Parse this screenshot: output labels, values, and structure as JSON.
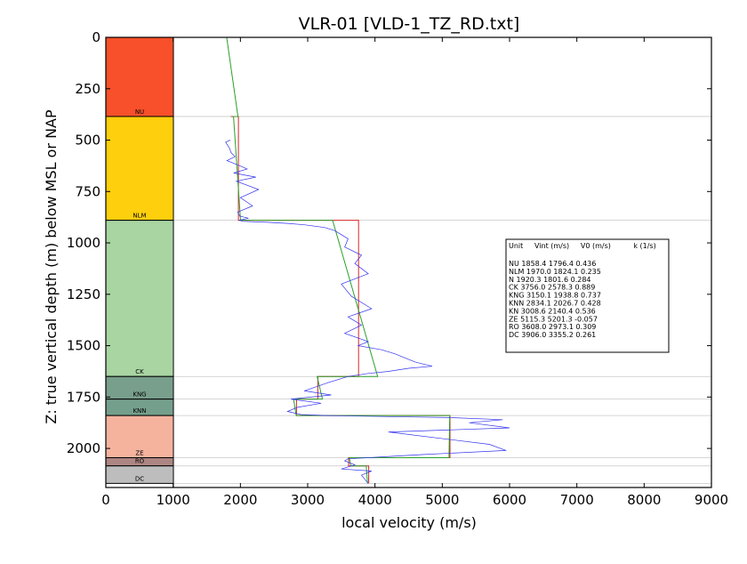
{
  "chart_data": {
    "type": "line",
    "title": "VLR-01 [VLD-1_TZ_RD.txt]",
    "xlabel": "local velocity (m/s)",
    "ylabel": "Z: true vertical depth (m) below MSL or NAP",
    "xlim": [
      0,
      9000
    ],
    "ylim": [
      2190,
      0
    ],
    "xticks": [
      "0",
      "1000",
      "2000",
      "3000",
      "4000",
      "5000",
      "6000",
      "7000",
      "8000",
      "9000"
    ],
    "yticks": [
      "0",
      "250",
      "500",
      "750",
      "1000",
      "1250",
      "1500",
      "1750",
      "2000"
    ],
    "grid": false,
    "legend_position": "right",
    "legend": {
      "header": "Unit     Vint (m/s)     V0 (m/s)          k (1/s)",
      "rows": [
        "NU       1858.4  1796.4  0.436",
        "NLM       1970.0  1824.1  0.235",
        "N        1920.3  1801.6  0.284",
        "CK       3756.0  2578.3  0.889",
        "KNG       3150.1  1938.8  0.737",
        "KNN       2834.1  2026.7  0.428",
        "KN       3008.6  2140.4  0.536",
        "ZE       5115.3  5201.3  -0.057",
        "RO       3608.0  2973.1  0.309",
        "DC       3906.0  3355.2  0.261"
      ]
    },
    "units": [
      {
        "name": "NU",
        "top": 0,
        "base": 385,
        "color": "#f7502a"
      },
      {
        "name": "NLM",
        "top": 385,
        "base": 890,
        "color": "#fdcf0c"
      },
      {
        "name": "CK",
        "top": 890,
        "base": 1650,
        "color": "#a8d5a2"
      },
      {
        "name": "KNG",
        "top": 1650,
        "base": 1760,
        "color": "#789e8c"
      },
      {
        "name": "KNN",
        "top": 1760,
        "base": 1840,
        "color": "#749f8c"
      },
      {
        "name": "ZE",
        "top": 1840,
        "base": 2045,
        "color": "#f5b39e"
      },
      {
        "name": "RO",
        "top": 2045,
        "base": 2085,
        "color": "#ad8684"
      },
      {
        "name": "DC",
        "top": 2085,
        "base": 2170,
        "color": "#bdbdbd"
      }
    ],
    "series": [
      {
        "color": "#d62728",
        "kind": "interval-velocity",
        "x": [
          1858,
          1858,
          1970,
          1970,
          3756,
          3756,
          3150,
          3150,
          2834,
          2834,
          5115,
          5115,
          3608,
          3608,
          3906,
          3906
        ],
        "y": [
          385,
          385,
          385,
          890,
          890,
          1650,
          1650,
          1760,
          1760,
          1840,
          1840,
          2045,
          2045,
          2085,
          2085,
          2170
        ],
        "note": "stepwise"
      },
      {
        "color": "#2ca02c",
        "kind": "v0-k-model",
        "x": [
          1796,
          1964,
          1898,
          2002,
          3370,
          4040,
          3140,
          3220,
          2790,
          2830,
          5110,
          5100,
          3620,
          3640,
          3870,
          3890
        ],
        "y": [
          0,
          385,
          385,
          890,
          890,
          1650,
          1650,
          1760,
          1760,
          1840,
          1840,
          2045,
          2045,
          2085,
          2085,
          2170
        ]
      },
      {
        "color": "#3333ee",
        "kind": "measured-log",
        "x": [
          1850,
          1780,
          1840,
          1860,
          1920,
          1800,
          1960,
          2100,
          1900,
          2230,
          1940,
          2270,
          2000,
          2180,
          1960,
          1990,
          2120,
          1980,
          2040,
          2400,
          2700,
          2950,
          3250,
          3400,
          3600,
          3550,
          3800,
          3700,
          3900,
          3500,
          3650,
          3950,
          3600,
          3800,
          3550,
          3900,
          3750,
          4100,
          4300,
          4450,
          4600,
          4850,
          4500,
          4200,
          3900,
          3600,
          3300,
          2950,
          3350,
          2750,
          3200,
          2850,
          2700,
          2900,
          3300,
          4200,
          5100,
          5900,
          5400,
          6000,
          4200,
          5700,
          5950,
          4700,
          3900,
          3600,
          3550,
          3700,
          3500,
          3950,
          3800,
          3850,
          3900
        ],
        "y": [
          500,
          510,
          540,
          560,
          580,
          600,
          620,
          640,
          660,
          680,
          700,
          740,
          780,
          820,
          850,
          870,
          880,
          890,
          895,
          900,
          905,
          912,
          925,
          940,
          980,
          1020,
          1060,
          1100,
          1150,
          1200,
          1260,
          1320,
          1360,
          1400,
          1440,
          1480,
          1500,
          1520,
          1540,
          1560,
          1580,
          1600,
          1610,
          1625,
          1635,
          1650,
          1680,
          1720,
          1740,
          1760,
          1780,
          1800,
          1820,
          1835,
          1840,
          1845,
          1850,
          1860,
          1875,
          1900,
          1920,
          1980,
          2010,
          2030,
          2045,
          2050,
          2060,
          2080,
          2100,
          2110,
          2130,
          2150,
          2170
        ]
      }
    ]
  }
}
